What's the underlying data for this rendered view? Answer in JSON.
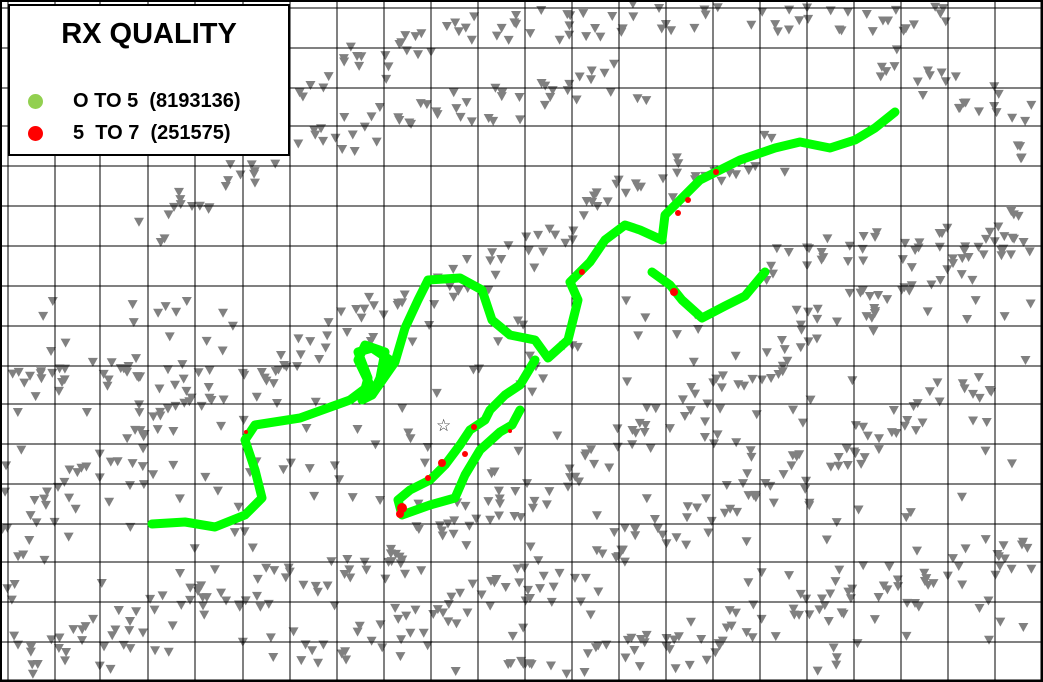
{
  "legend": {
    "title": "RX QUALITY",
    "items": [
      {
        "label": "O TO 5  (8193136)",
        "color": "#92d050",
        "symbol": "green-dot-icon"
      },
      {
        "label": "5  TO 7  (251575)",
        "color": "#ff0000",
        "symbol": "red-dot-icon"
      }
    ]
  },
  "map": {
    "route_color": "#00ff00",
    "poor_quality_color": "#ff0000",
    "site_icon_color": "#808080",
    "site_icon": "cell-site-sector-icon",
    "center_marker_icon": "star-outline-icon",
    "grid_color": "#000000"
  }
}
